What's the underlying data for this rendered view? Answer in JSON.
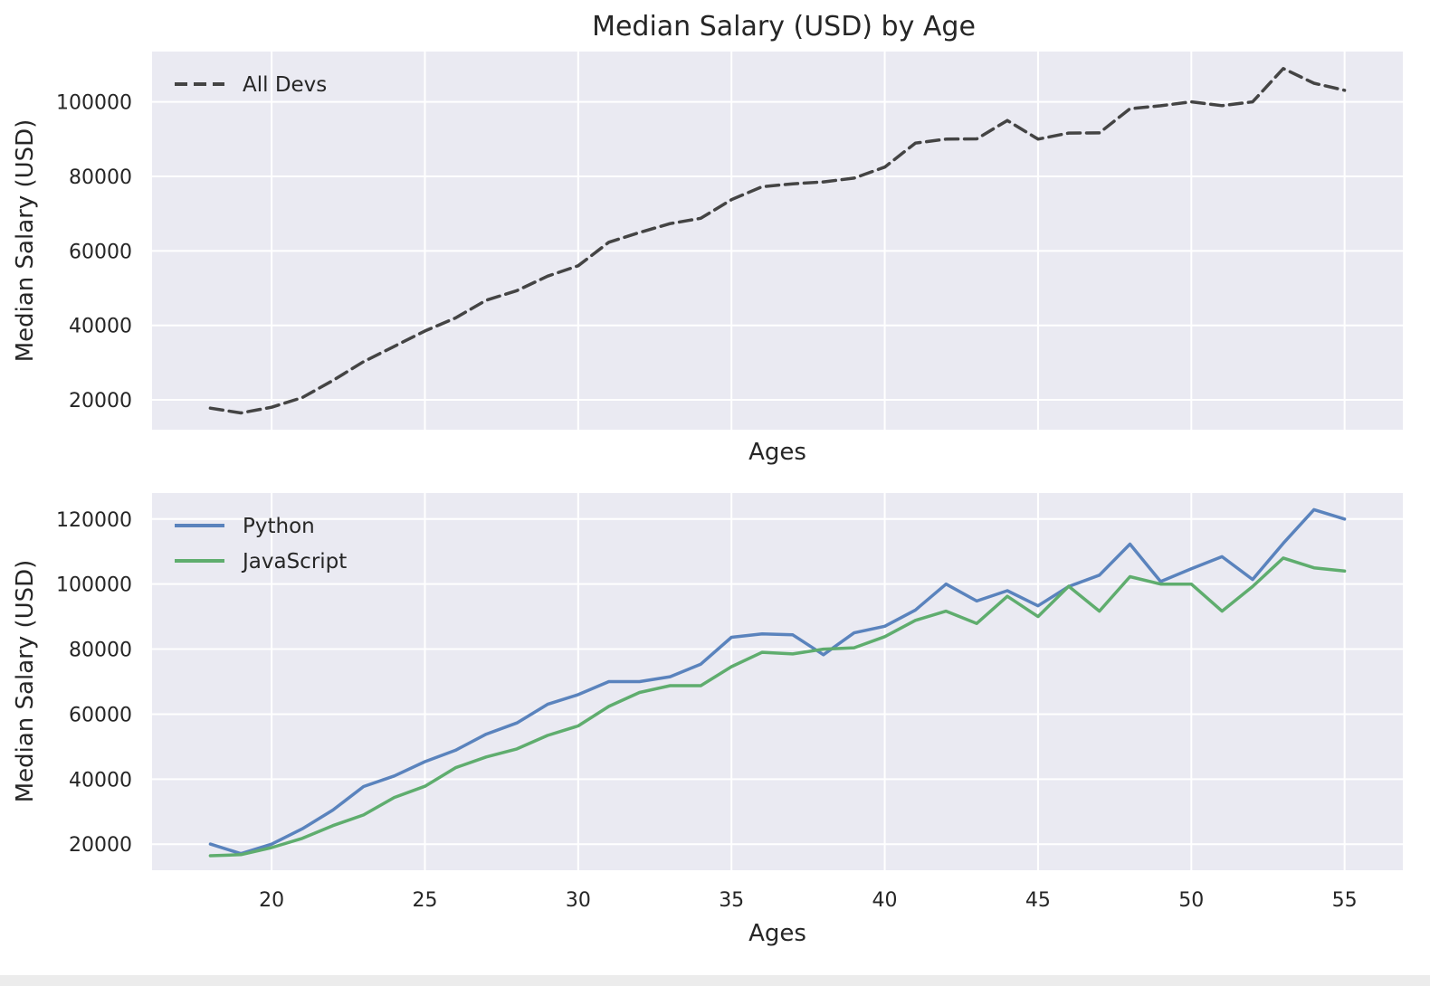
{
  "chart_data": [
    {
      "type": "line",
      "title": "Median Salary (USD) by Age",
      "xlabel": "Ages",
      "ylabel": "Median Salary (USD)",
      "xlim": [
        16.1,
        56.9
      ],
      "ylim": [
        12000,
        113500
      ],
      "xticks": [
        20,
        25,
        30,
        35,
        40,
        45,
        50,
        55
      ],
      "show_xtick_labels": false,
      "yticks": [
        20000,
        40000,
        60000,
        80000,
        100000
      ],
      "grid": true,
      "legend": "top-left",
      "x": [
        18,
        19,
        20,
        21,
        22,
        23,
        24,
        25,
        26,
        27,
        28,
        29,
        30,
        31,
        32,
        33,
        34,
        35,
        36,
        37,
        38,
        39,
        40,
        41,
        42,
        43,
        44,
        45,
        46,
        47,
        48,
        49,
        50,
        51,
        52,
        53,
        54,
        55
      ],
      "series": [
        {
          "name": "All Devs",
          "color": "#444444",
          "dash": "dashed",
          "values": [
            17784,
            16500,
            18012,
            20628,
            25206,
            30252,
            34368,
            38496,
            42000,
            46752,
            49320,
            53200,
            56000,
            62316,
            64928,
            67317,
            68748,
            73752,
            77232,
            78000,
            78508,
            79536,
            82488,
            88935,
            90000,
            90056,
            95000,
            90000,
            91633,
            91660,
            98150,
            98964,
            100000,
            98988,
            100000,
            108923,
            105000,
            103117
          ]
        }
      ]
    },
    {
      "type": "line",
      "xlabel": "Ages",
      "ylabel": "Median Salary (USD)",
      "xlim": [
        16.1,
        56.9
      ],
      "ylim": [
        12000,
        128000
      ],
      "xticks": [
        20,
        25,
        30,
        35,
        40,
        45,
        50,
        55
      ],
      "show_xtick_labels": true,
      "yticks": [
        20000,
        40000,
        60000,
        80000,
        100000,
        120000
      ],
      "grid": true,
      "legend": "top-left",
      "x": [
        18,
        19,
        20,
        21,
        22,
        23,
        24,
        25,
        26,
        27,
        28,
        29,
        30,
        31,
        32,
        33,
        34,
        35,
        36,
        37,
        38,
        39,
        40,
        41,
        42,
        43,
        44,
        45,
        46,
        47,
        48,
        49,
        50,
        51,
        52,
        53,
        54,
        55
      ],
      "series": [
        {
          "name": "Python",
          "color": "#5a83bd",
          "dash": "solid",
          "values": [
            20046,
            17100,
            20000,
            24744,
            30500,
            37732,
            41000,
            45372,
            48876,
            53850,
            57287,
            63016,
            65998,
            70003,
            70000,
            71496,
            75370,
            83640,
            84666,
            84392,
            78254,
            85000,
            87038,
            91991,
            100000,
            94796,
            97962,
            93302,
            99240,
            102736,
            112285,
            100771,
            104708,
            108423,
            101407,
            112542,
            122870,
            120000
          ]
        },
        {
          "name": "JavaScript",
          "color": "#5fad6e",
          "dash": "solid",
          "values": [
            16446,
            16791,
            18942,
            21780,
            25704,
            29000,
            34372,
            37810,
            43515,
            46823,
            49293,
            53437,
            56373,
            62375,
            66674,
            68745,
            68746,
            74583,
            79000,
            78508,
            79996,
            80403,
            83820,
            88833,
            91660,
            87892,
            96243,
            90000,
            99313,
            91660,
            102264,
            100000,
            100000,
            91660,
            99240,
            108000,
            105000,
            104000
          ]
        }
      ]
    }
  ]
}
